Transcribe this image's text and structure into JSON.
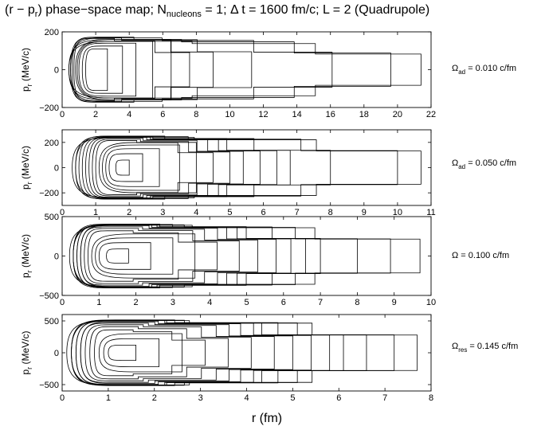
{
  "title": {
    "prefix": "(r − p",
    "sub1": "r",
    "mid": ") phase−space map; N",
    "sub2": "nucleons",
    "suffix": " = 1; Δ t = 1600 fm/c; L = 2 (Quadrupole)"
  },
  "xlabel": "r (fm)",
  "chart_data": [
    {
      "type": "line",
      "ylabel": "p_r (MeV/c)",
      "xlim": [
        0,
        22
      ],
      "ylim": [
        -200,
        200
      ],
      "xticks": [
        "0",
        "2",
        "4",
        "6",
        "8",
        "10",
        "12",
        "14",
        "16",
        "18",
        "20",
        "22"
      ],
      "yticks": [
        "200",
        "0",
        "−200"
      ],
      "annotation": {
        "symbol": "Ω",
        "sub": "ad",
        "text": " = 0.010 c/fm"
      },
      "series": [
        {
          "values_note": "phase-space orbits",
          "orbits": [
            {
              "r0": 1.4,
              "r1": 2.7,
              "p": 110
            },
            {
              "r0": 1.2,
              "r1": 3.6,
              "p": 125
            },
            {
              "r0": 1.0,
              "r1": 4.4,
              "p": 140
            },
            {
              "r0": 0.9,
              "r1": 5.4,
              "p": 150
            },
            {
              "r0": 0.8,
              "r1": 6.5,
              "p": 160
            },
            {
              "r0": 0.7,
              "r1": 7.6,
              "p": 165
            },
            {
              "r0": 0.6,
              "r1": 9.0,
              "p": 170
            },
            {
              "r0": 0.5,
              "r1": 11.3,
              "p": 172
            },
            {
              "r0": 0.5,
              "r1": 16.1,
              "p": 168
            },
            {
              "r0": 0.4,
              "r1": 19.6,
              "p": 160
            },
            {
              "r0": 0.4,
              "r1": 21.4,
              "p": 150
            }
          ]
        }
      ]
    },
    {
      "type": "line",
      "ylabel": "p_r (MeV/c)",
      "xlim": [
        0,
        11
      ],
      "ylim": [
        -300,
        300
      ],
      "xticks": [
        "0",
        "1",
        "2",
        "3",
        "4",
        "5",
        "6",
        "7",
        "8",
        "9",
        "10",
        "11"
      ],
      "yticks": [
        "200",
        "0",
        "−200"
      ],
      "annotation": {
        "symbol": "Ω",
        "sub": "ad",
        "text": " = 0.050 c/fm"
      },
      "series": [
        {
          "values_note": "phase-space orbits",
          "orbits": [
            {
              "r0": 1.6,
              "r1": 2.0,
              "p": 60
            },
            {
              "r0": 1.4,
              "r1": 2.4,
              "p": 110
            },
            {
              "r0": 1.3,
              "r1": 2.9,
              "p": 150
            },
            {
              "r0": 1.2,
              "r1": 3.5,
              "p": 180
            },
            {
              "r0": 1.1,
              "r1": 4.0,
              "p": 200
            },
            {
              "r0": 1.0,
              "r1": 4.5,
              "p": 215
            },
            {
              "r0": 0.9,
              "r1": 5.0,
              "p": 225
            },
            {
              "r0": 0.8,
              "r1": 5.4,
              "p": 235
            },
            {
              "r0": 0.7,
              "r1": 5.9,
              "p": 240
            },
            {
              "r0": 0.6,
              "r1": 6.4,
              "p": 245
            },
            {
              "r0": 0.5,
              "r1": 6.8,
              "p": 250
            },
            {
              "r0": 0.4,
              "r1": 8.0,
              "p": 250
            },
            {
              "r0": 0.4,
              "r1": 10.0,
              "p": 245
            },
            {
              "r0": 0.3,
              "r1": 10.7,
              "p": 240
            }
          ]
        }
      ]
    },
    {
      "type": "line",
      "ylabel": "p_r (MeV/c)",
      "xlim": [
        0,
        10
      ],
      "ylim": [
        -500,
        500
      ],
      "xticks": [
        "0",
        "1",
        "2",
        "3",
        "4",
        "5",
        "6",
        "7",
        "8",
        "9",
        "10"
      ],
      "yticks": [
        "500",
        "0",
        "−500"
      ],
      "annotation": {
        "symbol": "Ω",
        "sub": "",
        "text": " = 0.100 c/fm"
      },
      "series": [
        {
          "values_note": "phase-space orbits",
          "orbits": [
            {
              "r0": 1.2,
              "r1": 1.8,
              "p": 90
            },
            {
              "r0": 1.0,
              "r1": 2.4,
              "p": 170
            },
            {
              "r0": 0.9,
              "r1": 3.0,
              "p": 230
            },
            {
              "r0": 0.8,
              "r1": 3.6,
              "p": 280
            },
            {
              "r0": 0.7,
              "r1": 4.2,
              "p": 320
            },
            {
              "r0": 0.6,
              "r1": 4.8,
              "p": 350
            },
            {
              "r0": 0.5,
              "r1": 5.3,
              "p": 370
            },
            {
              "r0": 0.5,
              "r1": 5.8,
              "p": 385
            },
            {
              "r0": 0.4,
              "r1": 6.2,
              "p": 395
            },
            {
              "r0": 0.4,
              "r1": 6.6,
              "p": 400
            },
            {
              "r0": 0.3,
              "r1": 7.0,
              "p": 405
            },
            {
              "r0": 0.3,
              "r1": 8.0,
              "p": 400
            },
            {
              "r0": 0.3,
              "r1": 8.9,
              "p": 395
            },
            {
              "r0": 0.2,
              "r1": 9.7,
              "p": 390
            }
          ]
        }
      ]
    },
    {
      "type": "line",
      "ylabel": "p_r (MeV/c)",
      "xlim": [
        0,
        8
      ],
      "ylim": [
        -600,
        600
      ],
      "xticks": [
        "0",
        "1",
        "2",
        "3",
        "4",
        "5",
        "6",
        "7",
        "8"
      ],
      "yticks": [
        "500",
        "0",
        "−500"
      ],
      "annotation": {
        "symbol": "Ω",
        "sub": "res",
        "text": " = 0.145 c/fm"
      },
      "series": [
        {
          "values_note": "phase-space orbits",
          "orbits": [
            {
              "r0": 1.0,
              "r1": 1.6,
              "p": 120
            },
            {
              "r0": 0.9,
              "r1": 2.1,
              "p": 220
            },
            {
              "r0": 0.8,
              "r1": 2.6,
              "p": 300
            },
            {
              "r0": 0.7,
              "r1": 3.1,
              "p": 360
            },
            {
              "r0": 0.6,
              "r1": 3.6,
              "p": 410
            },
            {
              "r0": 0.5,
              "r1": 4.1,
              "p": 440
            },
            {
              "r0": 0.4,
              "r1": 4.6,
              "p": 465
            },
            {
              "r0": 0.4,
              "r1": 5.0,
              "p": 480
            },
            {
              "r0": 0.3,
              "r1": 5.4,
              "p": 495
            },
            {
              "r0": 0.3,
              "r1": 5.8,
              "p": 505
            },
            {
              "r0": 0.2,
              "r1": 6.1,
              "p": 510
            },
            {
              "r0": 0.2,
              "r1": 6.6,
              "p": 515
            },
            {
              "r0": 0.2,
              "r1": 7.2,
              "p": 510
            },
            {
              "r0": 0.1,
              "r1": 7.7,
              "p": 505
            }
          ]
        }
      ]
    }
  ]
}
